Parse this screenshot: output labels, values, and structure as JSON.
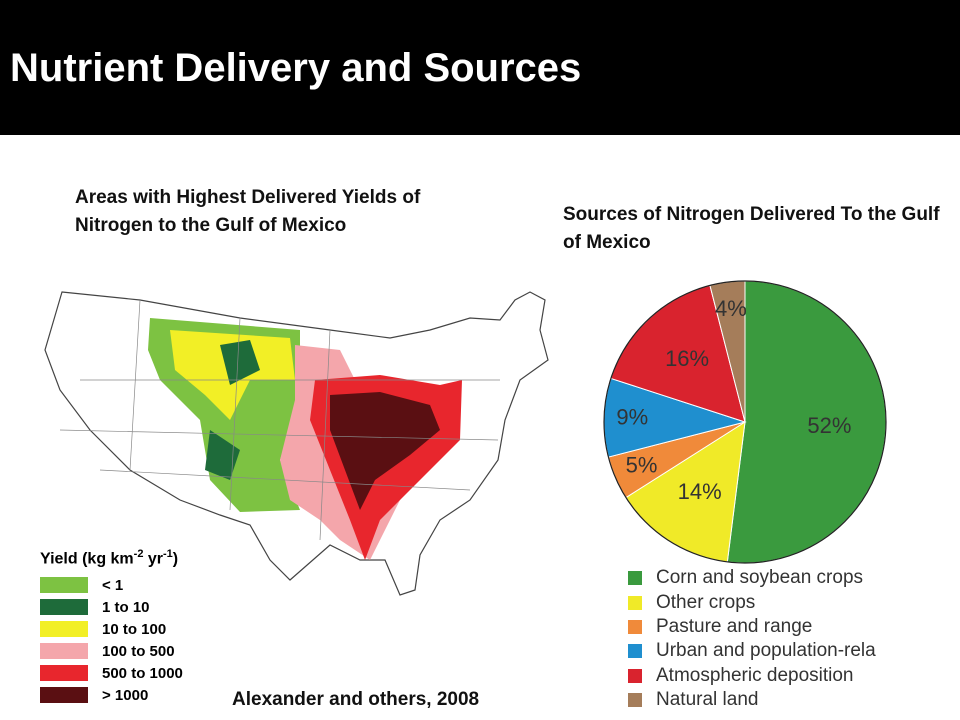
{
  "title": "Nutrient Delivery and Sources",
  "map": {
    "title": "Areas with Highest Delivered Yields of Nitrogen to the Gulf of Mexico",
    "legend_title": [
      "Yield (kg km",
      "-2",
      " yr",
      "-1",
      ")"
    ],
    "legend": [
      {
        "label": "< 1",
        "color": "#7dc242"
      },
      {
        "label": "1 to 10",
        "color": "#1e6b3a"
      },
      {
        "label": "10 to 100",
        "color": "#f2ef26"
      },
      {
        "label": "100 to 500",
        "color": "#f4a6ab"
      },
      {
        "label": "500 to 1000",
        "color": "#e8262d"
      },
      {
        "label": "> 1000",
        "color": "#5a0f12"
      }
    ]
  },
  "citation": "Alexander and others, 2008",
  "chart_data": {
    "type": "pie",
    "title": "Sources of Nitrogen Delivered To the Gulf of Mexico",
    "categories": [
      "Corn and soybean crops",
      "Other crops",
      "Pasture and range",
      "Urban and population-rela",
      "Atmospheric deposition",
      "Natural land"
    ],
    "values": [
      52,
      14,
      5,
      9,
      16,
      4
    ],
    "value_labels": [
      "52%",
      "14%",
      "5%",
      "9%",
      "16%",
      "4%"
    ],
    "colors": [
      "#3a9a3e",
      "#f0ea28",
      "#f08a3a",
      "#1f8fcf",
      "#d9232e",
      "#a57d5a"
    ]
  }
}
